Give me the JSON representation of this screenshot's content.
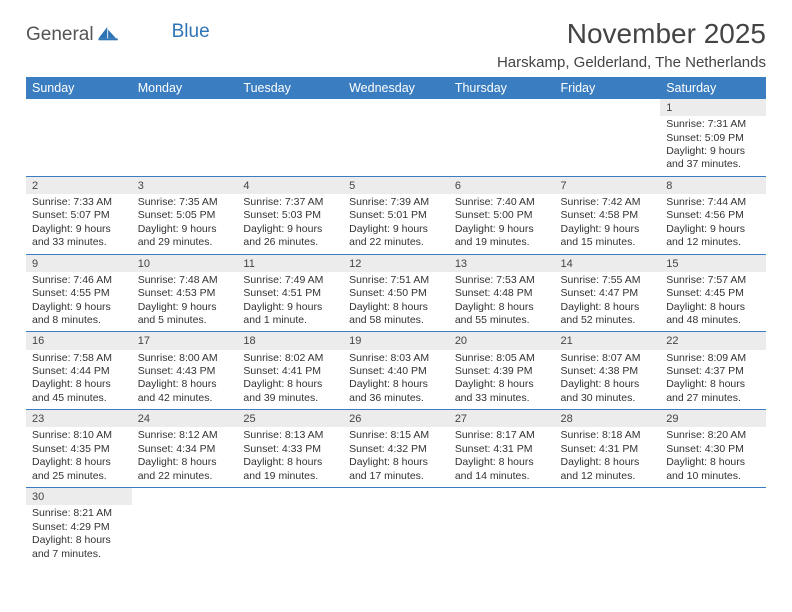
{
  "brand": {
    "part1": "General",
    "part2": "Blue"
  },
  "title": "November 2025",
  "location": "Harskamp, Gelderland, The Netherlands",
  "colors": {
    "header_bg": "#3a7ec1",
    "header_text": "#ffffff",
    "daynum_bg": "#ececec",
    "row_border": "#3a7ec1",
    "text": "#333333",
    "logo_blue": "#2e74b5"
  },
  "weekdays": [
    "Sunday",
    "Monday",
    "Tuesday",
    "Wednesday",
    "Thursday",
    "Friday",
    "Saturday"
  ],
  "weeks": [
    [
      null,
      null,
      null,
      null,
      null,
      null,
      {
        "n": "1",
        "sunrise": "7:31 AM",
        "sunset": "5:09 PM",
        "dl1": "Daylight: 9 hours",
        "dl2": "and 37 minutes."
      }
    ],
    [
      {
        "n": "2",
        "sunrise": "7:33 AM",
        "sunset": "5:07 PM",
        "dl1": "Daylight: 9 hours",
        "dl2": "and 33 minutes."
      },
      {
        "n": "3",
        "sunrise": "7:35 AM",
        "sunset": "5:05 PM",
        "dl1": "Daylight: 9 hours",
        "dl2": "and 29 minutes."
      },
      {
        "n": "4",
        "sunrise": "7:37 AM",
        "sunset": "5:03 PM",
        "dl1": "Daylight: 9 hours",
        "dl2": "and 26 minutes."
      },
      {
        "n": "5",
        "sunrise": "7:39 AM",
        "sunset": "5:01 PM",
        "dl1": "Daylight: 9 hours",
        "dl2": "and 22 minutes."
      },
      {
        "n": "6",
        "sunrise": "7:40 AM",
        "sunset": "5:00 PM",
        "dl1": "Daylight: 9 hours",
        "dl2": "and 19 minutes."
      },
      {
        "n": "7",
        "sunrise": "7:42 AM",
        "sunset": "4:58 PM",
        "dl1": "Daylight: 9 hours",
        "dl2": "and 15 minutes."
      },
      {
        "n": "8",
        "sunrise": "7:44 AM",
        "sunset": "4:56 PM",
        "dl1": "Daylight: 9 hours",
        "dl2": "and 12 minutes."
      }
    ],
    [
      {
        "n": "9",
        "sunrise": "7:46 AM",
        "sunset": "4:55 PM",
        "dl1": "Daylight: 9 hours",
        "dl2": "and 8 minutes."
      },
      {
        "n": "10",
        "sunrise": "7:48 AM",
        "sunset": "4:53 PM",
        "dl1": "Daylight: 9 hours",
        "dl2": "and 5 minutes."
      },
      {
        "n": "11",
        "sunrise": "7:49 AM",
        "sunset": "4:51 PM",
        "dl1": "Daylight: 9 hours",
        "dl2": "and 1 minute."
      },
      {
        "n": "12",
        "sunrise": "7:51 AM",
        "sunset": "4:50 PM",
        "dl1": "Daylight: 8 hours",
        "dl2": "and 58 minutes."
      },
      {
        "n": "13",
        "sunrise": "7:53 AM",
        "sunset": "4:48 PM",
        "dl1": "Daylight: 8 hours",
        "dl2": "and 55 minutes."
      },
      {
        "n": "14",
        "sunrise": "7:55 AM",
        "sunset": "4:47 PM",
        "dl1": "Daylight: 8 hours",
        "dl2": "and 52 minutes."
      },
      {
        "n": "15",
        "sunrise": "7:57 AM",
        "sunset": "4:45 PM",
        "dl1": "Daylight: 8 hours",
        "dl2": "and 48 minutes."
      }
    ],
    [
      {
        "n": "16",
        "sunrise": "7:58 AM",
        "sunset": "4:44 PM",
        "dl1": "Daylight: 8 hours",
        "dl2": "and 45 minutes."
      },
      {
        "n": "17",
        "sunrise": "8:00 AM",
        "sunset": "4:43 PM",
        "dl1": "Daylight: 8 hours",
        "dl2": "and 42 minutes."
      },
      {
        "n": "18",
        "sunrise": "8:02 AM",
        "sunset": "4:41 PM",
        "dl1": "Daylight: 8 hours",
        "dl2": "and 39 minutes."
      },
      {
        "n": "19",
        "sunrise": "8:03 AM",
        "sunset": "4:40 PM",
        "dl1": "Daylight: 8 hours",
        "dl2": "and 36 minutes."
      },
      {
        "n": "20",
        "sunrise": "8:05 AM",
        "sunset": "4:39 PM",
        "dl1": "Daylight: 8 hours",
        "dl2": "and 33 minutes."
      },
      {
        "n": "21",
        "sunrise": "8:07 AM",
        "sunset": "4:38 PM",
        "dl1": "Daylight: 8 hours",
        "dl2": "and 30 minutes."
      },
      {
        "n": "22",
        "sunrise": "8:09 AM",
        "sunset": "4:37 PM",
        "dl1": "Daylight: 8 hours",
        "dl2": "and 27 minutes."
      }
    ],
    [
      {
        "n": "23",
        "sunrise": "8:10 AM",
        "sunset": "4:35 PM",
        "dl1": "Daylight: 8 hours",
        "dl2": "and 25 minutes."
      },
      {
        "n": "24",
        "sunrise": "8:12 AM",
        "sunset": "4:34 PM",
        "dl1": "Daylight: 8 hours",
        "dl2": "and 22 minutes."
      },
      {
        "n": "25",
        "sunrise": "8:13 AM",
        "sunset": "4:33 PM",
        "dl1": "Daylight: 8 hours",
        "dl2": "and 19 minutes."
      },
      {
        "n": "26",
        "sunrise": "8:15 AM",
        "sunset": "4:32 PM",
        "dl1": "Daylight: 8 hours",
        "dl2": "and 17 minutes."
      },
      {
        "n": "27",
        "sunrise": "8:17 AM",
        "sunset": "4:31 PM",
        "dl1": "Daylight: 8 hours",
        "dl2": "and 14 minutes."
      },
      {
        "n": "28",
        "sunrise": "8:18 AM",
        "sunset": "4:31 PM",
        "dl1": "Daylight: 8 hours",
        "dl2": "and 12 minutes."
      },
      {
        "n": "29",
        "sunrise": "8:20 AM",
        "sunset": "4:30 PM",
        "dl1": "Daylight: 8 hours",
        "dl2": "and 10 minutes."
      }
    ],
    [
      {
        "n": "30",
        "sunrise": "8:21 AM",
        "sunset": "4:29 PM",
        "dl1": "Daylight: 8 hours",
        "dl2": "and 7 minutes."
      },
      null,
      null,
      null,
      null,
      null,
      null
    ]
  ],
  "labels": {
    "sunrise_prefix": "Sunrise: ",
    "sunset_prefix": "Sunset: "
  }
}
